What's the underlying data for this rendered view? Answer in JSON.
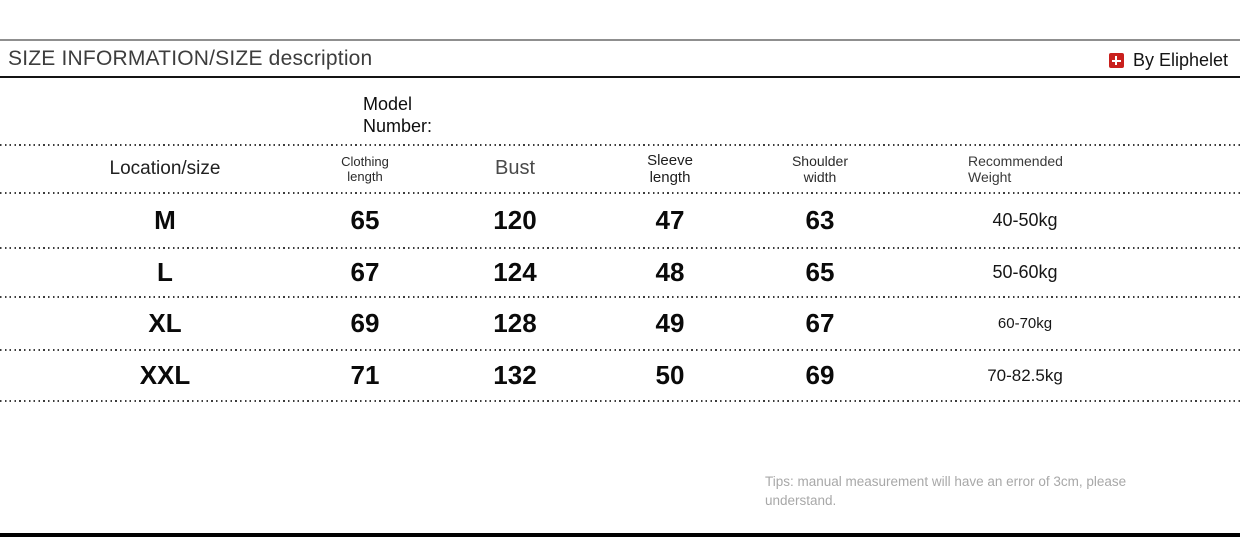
{
  "header": {
    "title": "SIZE INFORMATION/SIZE description",
    "brand": "By Eliphelet"
  },
  "model": {
    "label": "Model\nNumber:"
  },
  "table": {
    "headers": {
      "location": "Location/size",
      "clothing_length": "Clothing\nlength",
      "bust": "Bust",
      "sleeve_length": "Sleeve\nlength",
      "shoulder_width": "Shoulder\nwidth",
      "weight": "Recommended\nWeight"
    },
    "rows": [
      {
        "size": "M",
        "clothing_length": "65",
        "bust": "120",
        "sleeve_length": "47",
        "shoulder_width": "63",
        "weight": "40-50kg"
      },
      {
        "size": "L",
        "clothing_length": "67",
        "bust": "124",
        "sleeve_length": "48",
        "shoulder_width": "65",
        "weight": "50-60kg"
      },
      {
        "size": "XL",
        "clothing_length": "69",
        "bust": "128",
        "sleeve_length": "49",
        "shoulder_width": "67",
        "weight": "60-70kg"
      },
      {
        "size": "XXL",
        "clothing_length": "71",
        "bust": "132",
        "sleeve_length": "50",
        "shoulder_width": "69",
        "weight": "70-82.5kg"
      }
    ]
  },
  "tips": "Tips: manual measurement will have an error of 3cm, please understand.",
  "colors": {
    "accent_red": "#c9201d",
    "text_dark": "#141414",
    "text_gray": "#a8a8a8"
  }
}
